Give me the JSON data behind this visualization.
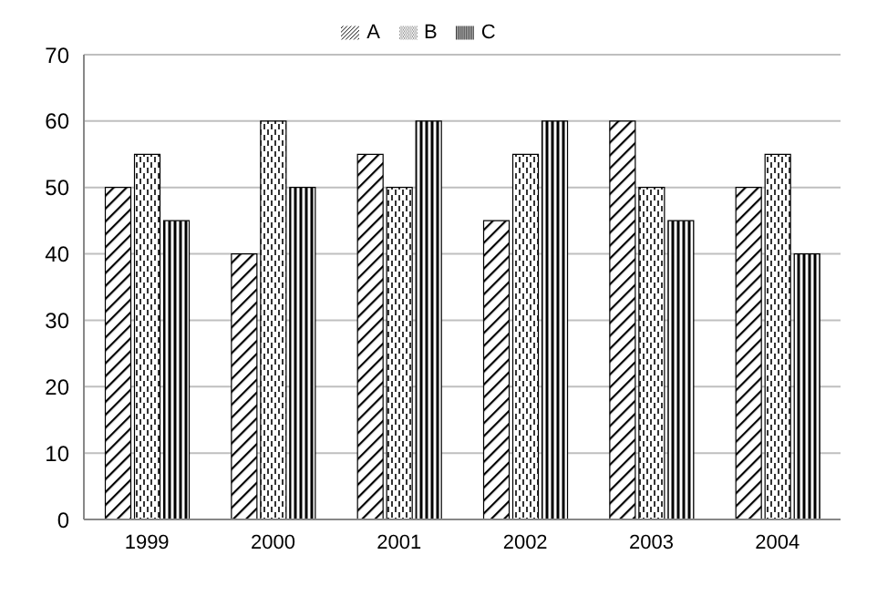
{
  "chart_data": {
    "type": "bar",
    "categories": [
      "1999",
      "2000",
      "2001",
      "2002",
      "2003",
      "2004"
    ],
    "series": [
      {
        "name": "A",
        "color": "#000000",
        "values": [
          50,
          40,
          55,
          45,
          60,
          50
        ]
      },
      {
        "name": "B",
        "color": "#000000",
        "values": [
          55,
          60,
          50,
          55,
          50,
          55
        ]
      },
      {
        "name": "C",
        "color": "#000000",
        "values": [
          45,
          50,
          60,
          60,
          45,
          40
        ]
      }
    ],
    "ylim": [
      0,
      70
    ],
    "yticks": [
      0,
      10,
      20,
      30,
      40,
      50,
      60,
      70
    ],
    "grid": "y",
    "legend": "top"
  }
}
